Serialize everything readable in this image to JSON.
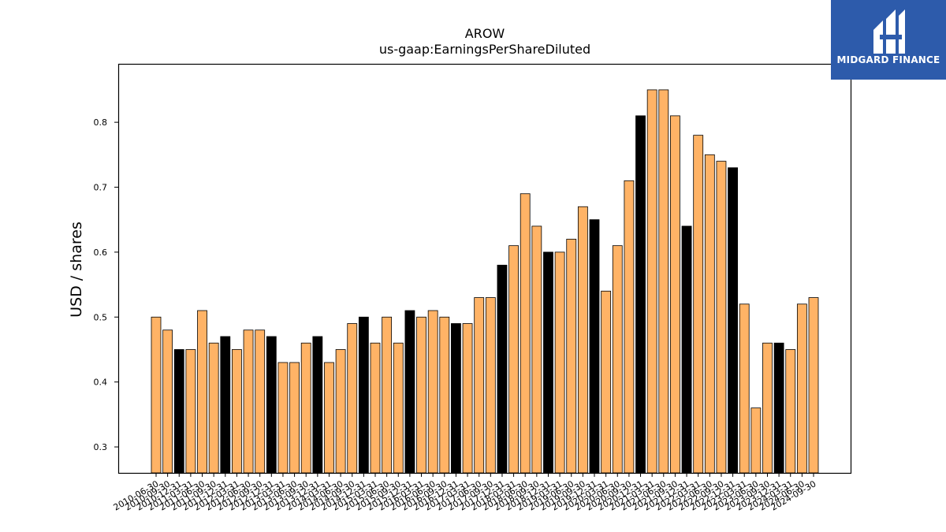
{
  "brand": {
    "name": "MIDGARD FINANCE"
  },
  "colors": {
    "fy": "#000000",
    "quarter": "#ffb366",
    "edge": "#000000",
    "logo_bg": "#2d5bab"
  },
  "chart_data": {
    "type": "bar",
    "title": "AROW",
    "subtitle": "us-gaap:EarningsPerShareDiluted",
    "xlabel": "",
    "ylabel": "USD / shares",
    "ylim": [
      0.26,
      0.89
    ],
    "yticks": [
      0.3,
      0.4,
      0.5,
      0.6,
      0.7,
      0.8
    ],
    "grid": false,
    "categories": [
      "2010-06-30",
      "2010-09-30",
      "2010-12-31",
      "2011-03-31",
      "2011-06-30",
      "2011-09-30",
      "2011-12-31",
      "2012-03-31",
      "2012-06-30",
      "2012-09-30",
      "2012-12-31",
      "2013-03-31",
      "2013-06-30",
      "2013-09-30",
      "2013-12-31",
      "2014-03-31",
      "2014-06-30",
      "2014-09-30",
      "2014-12-31",
      "2015-03-31",
      "2015-06-30",
      "2015-09-30",
      "2015-12-31",
      "2016-03-31",
      "2016-06-30",
      "2016-09-30",
      "2016-12-31",
      "2017-03-31",
      "2017-06-30",
      "2017-09-30",
      "2017-12-31",
      "2018-03-31",
      "2018-06-30",
      "2018-09-30",
      "2018-12-31",
      "2019-03-31",
      "2019-06-30",
      "2019-09-30",
      "2019-12-31",
      "2020-03-31",
      "2020-06-30",
      "2020-09-30",
      "2020-12-31",
      "2021-03-31",
      "2021-06-30",
      "2021-09-30",
      "2021-12-31",
      "2022-03-31",
      "2022-06-30",
      "2022-09-30",
      "2022-12-31",
      "2023-03-31",
      "2023-06-30",
      "2023-09-30",
      "2023-12-31",
      "2024-03-31",
      "2024-06-30",
      "2024-09-30"
    ],
    "values": [
      0.5,
      0.48,
      0.45,
      0.45,
      0.51,
      0.46,
      0.47,
      0.45,
      0.48,
      0.48,
      0.47,
      0.43,
      0.43,
      0.46,
      0.47,
      0.43,
      0.45,
      0.49,
      0.5,
      0.46,
      0.5,
      0.46,
      0.51,
      0.5,
      0.51,
      0.5,
      0.49,
      0.49,
      0.53,
      0.53,
      0.58,
      0.61,
      0.69,
      0.64,
      0.6,
      0.6,
      0.62,
      0.67,
      0.65,
      0.54,
      0.61,
      0.71,
      0.81,
      0.85,
      0.85,
      0.81,
      0.64,
      0.78,
      0.75,
      0.74,
      0.73,
      0.52,
      0.36,
      0.46,
      0.46,
      0.45,
      0.52,
      0.53
    ],
    "fiscal_year_end_flags": [
      false,
      false,
      true,
      false,
      false,
      false,
      true,
      false,
      false,
      false,
      true,
      false,
      false,
      false,
      true,
      false,
      false,
      false,
      true,
      false,
      false,
      false,
      true,
      false,
      false,
      false,
      true,
      false,
      false,
      false,
      true,
      false,
      false,
      false,
      true,
      false,
      false,
      false,
      true,
      false,
      false,
      false,
      true,
      false,
      false,
      false,
      true,
      false,
      false,
      false,
      true,
      false,
      false,
      false,
      true,
      false,
      false,
      false
    ]
  }
}
